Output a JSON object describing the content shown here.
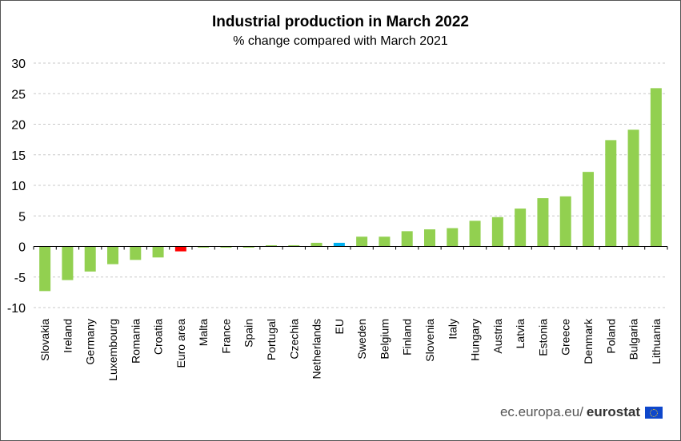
{
  "chart_data": {
    "type": "bar",
    "title": "Industrial production in March 2022",
    "subtitle": "% change compared with March 2021",
    "categories": [
      "Slovakia",
      "Ireland",
      "Germany",
      "Luxembourg",
      "Romania",
      "Croatia",
      "Euro area",
      "Malta",
      "France",
      "Spain",
      "Portugal",
      "Czechia",
      "Netherlands",
      "EU",
      "Sweden",
      "Belgium",
      "Finland",
      "Slovenia",
      "Italy",
      "Hungary",
      "Austria",
      "Latvia",
      "Estonia",
      "Greece",
      "Denmark",
      "Poland",
      "Bulgaria",
      "Lithuania"
    ],
    "values": [
      -7.3,
      -5.5,
      -4.1,
      -2.9,
      -2.2,
      -1.8,
      -0.8,
      -0.2,
      -0.2,
      -0.2,
      0.0,
      0.2,
      0.6,
      0.6,
      1.6,
      1.6,
      2.5,
      2.8,
      3.0,
      4.2,
      4.8,
      6.2,
      7.9,
      8.2,
      12.2,
      17.4,
      19.1,
      25.9
    ],
    "colors": [
      "#92d050",
      "#92d050",
      "#92d050",
      "#92d050",
      "#92d050",
      "#92d050",
      "#ff0000",
      "#92d050",
      "#92d050",
      "#92d050",
      "#92d050",
      "#92d050",
      "#92d050",
      "#00b0f0",
      "#92d050",
      "#92d050",
      "#92d050",
      "#92d050",
      "#92d050",
      "#92d050",
      "#92d050",
      "#92d050",
      "#92d050",
      "#92d050",
      "#92d050",
      "#92d050",
      "#92d050",
      "#92d050"
    ],
    "yticks": [
      "30",
      "25",
      "20",
      "15",
      "10",
      "5",
      "0",
      "-5",
      "-10"
    ],
    "ylim": [
      -10,
      30
    ],
    "grid": true,
    "gridlines": "horizontal dashed",
    "legend": "none"
  },
  "footer": {
    "url": "ec.europa.eu/",
    "brand": "eurostat"
  }
}
